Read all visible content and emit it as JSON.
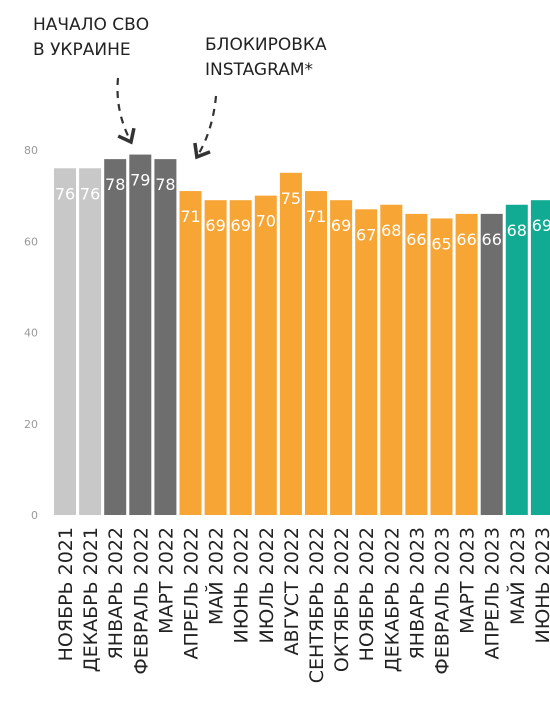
{
  "annotations": {
    "svo_line1": "НАЧАЛО СВО",
    "svo_line2": "В УКРАИНЕ",
    "instagram_line1": "БЛОКИРОВКА",
    "instagram_line2": "INSTAGRAM*"
  },
  "colors": {
    "light_gray": "#c8c8c8",
    "dark_gray": "#6e6e6e",
    "orange": "#f7a535",
    "teal": "#11ab94",
    "arrow": "#333333",
    "tick_text": "#9a9a9a"
  },
  "chart_data": {
    "type": "bar",
    "title": "",
    "xlabel": "",
    "ylabel": "",
    "ylim": [
      0,
      80
    ],
    "yticks": [
      0,
      20,
      40,
      60,
      80
    ],
    "grid": false,
    "categories": [
      "НОЯБРЬ 2021",
      "ДЕКАБРЬ 2021",
      "ЯНВАРЬ 2022",
      "ФЕВРАЛЬ 2022",
      "МАРТ 2022",
      "АПРЕЛЬ 2022",
      "МАЙ 2022",
      "ИЮНЬ 2022",
      "ИЮЛЬ 2022",
      "АВГУСТ 2022",
      "СЕНТЯБРЬ 2022",
      "ОКТЯБРЬ 2022",
      "НОЯБРЬ 2022",
      "ДЕКАБРЬ 2022",
      "ЯНВАРЬ 2023",
      "ФЕВРАЛЬ 2023",
      "МАРТ 2023",
      "АПРЕЛЬ 2023",
      "МАЙ 2023",
      "ИЮНЬ 2023"
    ],
    "values": [
      76,
      76,
      78,
      79,
      78,
      71,
      69,
      69,
      70,
      75,
      71,
      69,
      67,
      68,
      66,
      65,
      66,
      66,
      68,
      69
    ],
    "labels": [
      "76",
      "76",
      "78",
      "79",
      "78",
      "71",
      "69",
      "69",
      "70",
      "75",
      "71",
      "69",
      "67",
      "68",
      "66",
      "65",
      "66",
      "66",
      "68",
      "69"
    ],
    "bar_colors": [
      "light_gray",
      "light_gray",
      "dark_gray",
      "dark_gray",
      "dark_gray",
      "orange",
      "orange",
      "orange",
      "orange",
      "orange",
      "orange",
      "orange",
      "orange",
      "orange",
      "orange",
      "orange",
      "orange",
      "dark_gray",
      "teal",
      "teal"
    ]
  }
}
